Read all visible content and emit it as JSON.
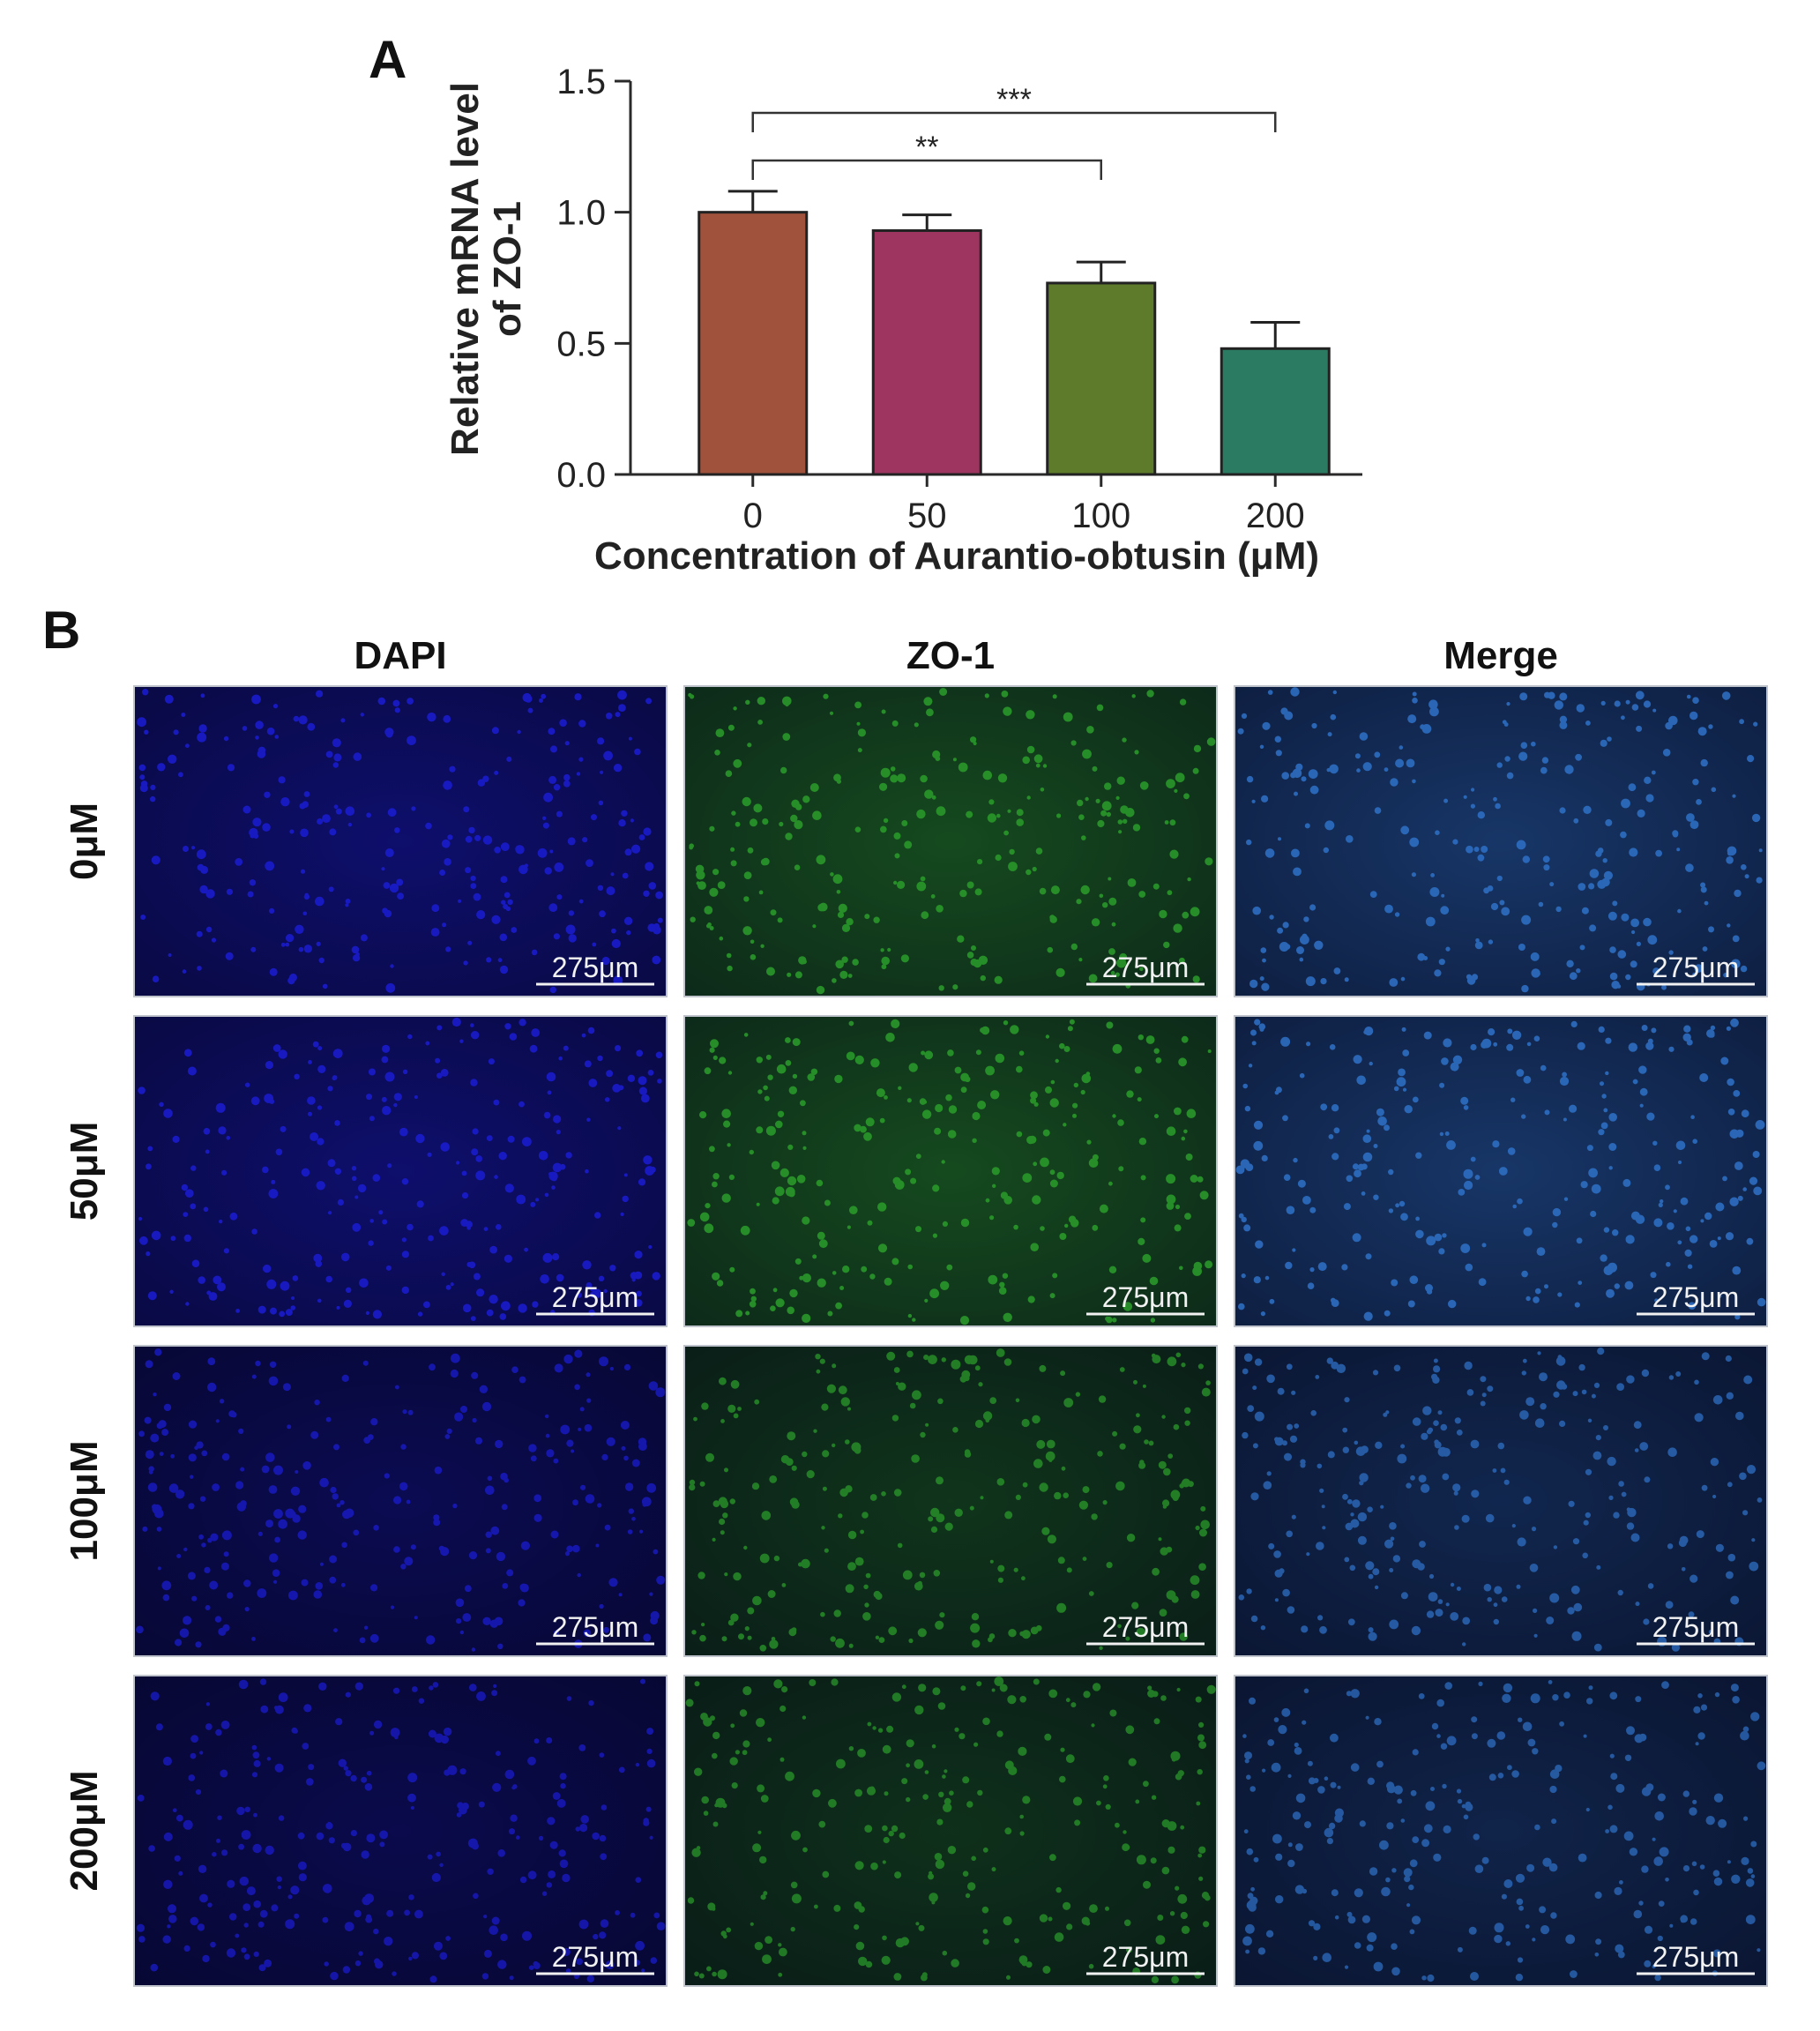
{
  "chart_data": {
    "type": "bar",
    "panel_label": "A",
    "categories": [
      "0",
      "50",
      "100",
      "200"
    ],
    "values": [
      1.0,
      0.93,
      0.73,
      0.48
    ],
    "errors": [
      0.08,
      0.06,
      0.08,
      0.1
    ],
    "colors": [
      "#a0523c",
      "#9e3560",
      "#5e7a2b",
      "#2b7a62"
    ],
    "xlabel": "Concentration of Aurantio-obtusin (μM)",
    "ylabel_line1": "Relative mRNA level",
    "ylabel_line2": "of ZO-1",
    "ylim": [
      0,
      1.5
    ],
    "yticks": [
      "0.0",
      "0.5",
      "1.0",
      "1.5"
    ],
    "ytick_values": [
      0,
      0.5,
      1.0,
      1.5
    ],
    "significance": [
      {
        "from": "0",
        "to": "100",
        "label": "**"
      },
      {
        "from": "0",
        "to": "200",
        "label": "***"
      }
    ],
    "grid": false,
    "legend": "none"
  },
  "micrographs": {
    "panel_label": "B",
    "columns": [
      "DAPI",
      "ZO-1",
      "Merge"
    ],
    "rows": [
      "0μM",
      "50μM",
      "100μM",
      "200μM"
    ],
    "scale_bar": "275μm",
    "channel_colors": {
      "DAPI": "#1a1ccf",
      "ZO-1": "#2a9a2a",
      "Merge": "#2e6fc4"
    },
    "intensity_by_row": [
      0.85,
      0.85,
      0.6,
      0.55
    ]
  }
}
